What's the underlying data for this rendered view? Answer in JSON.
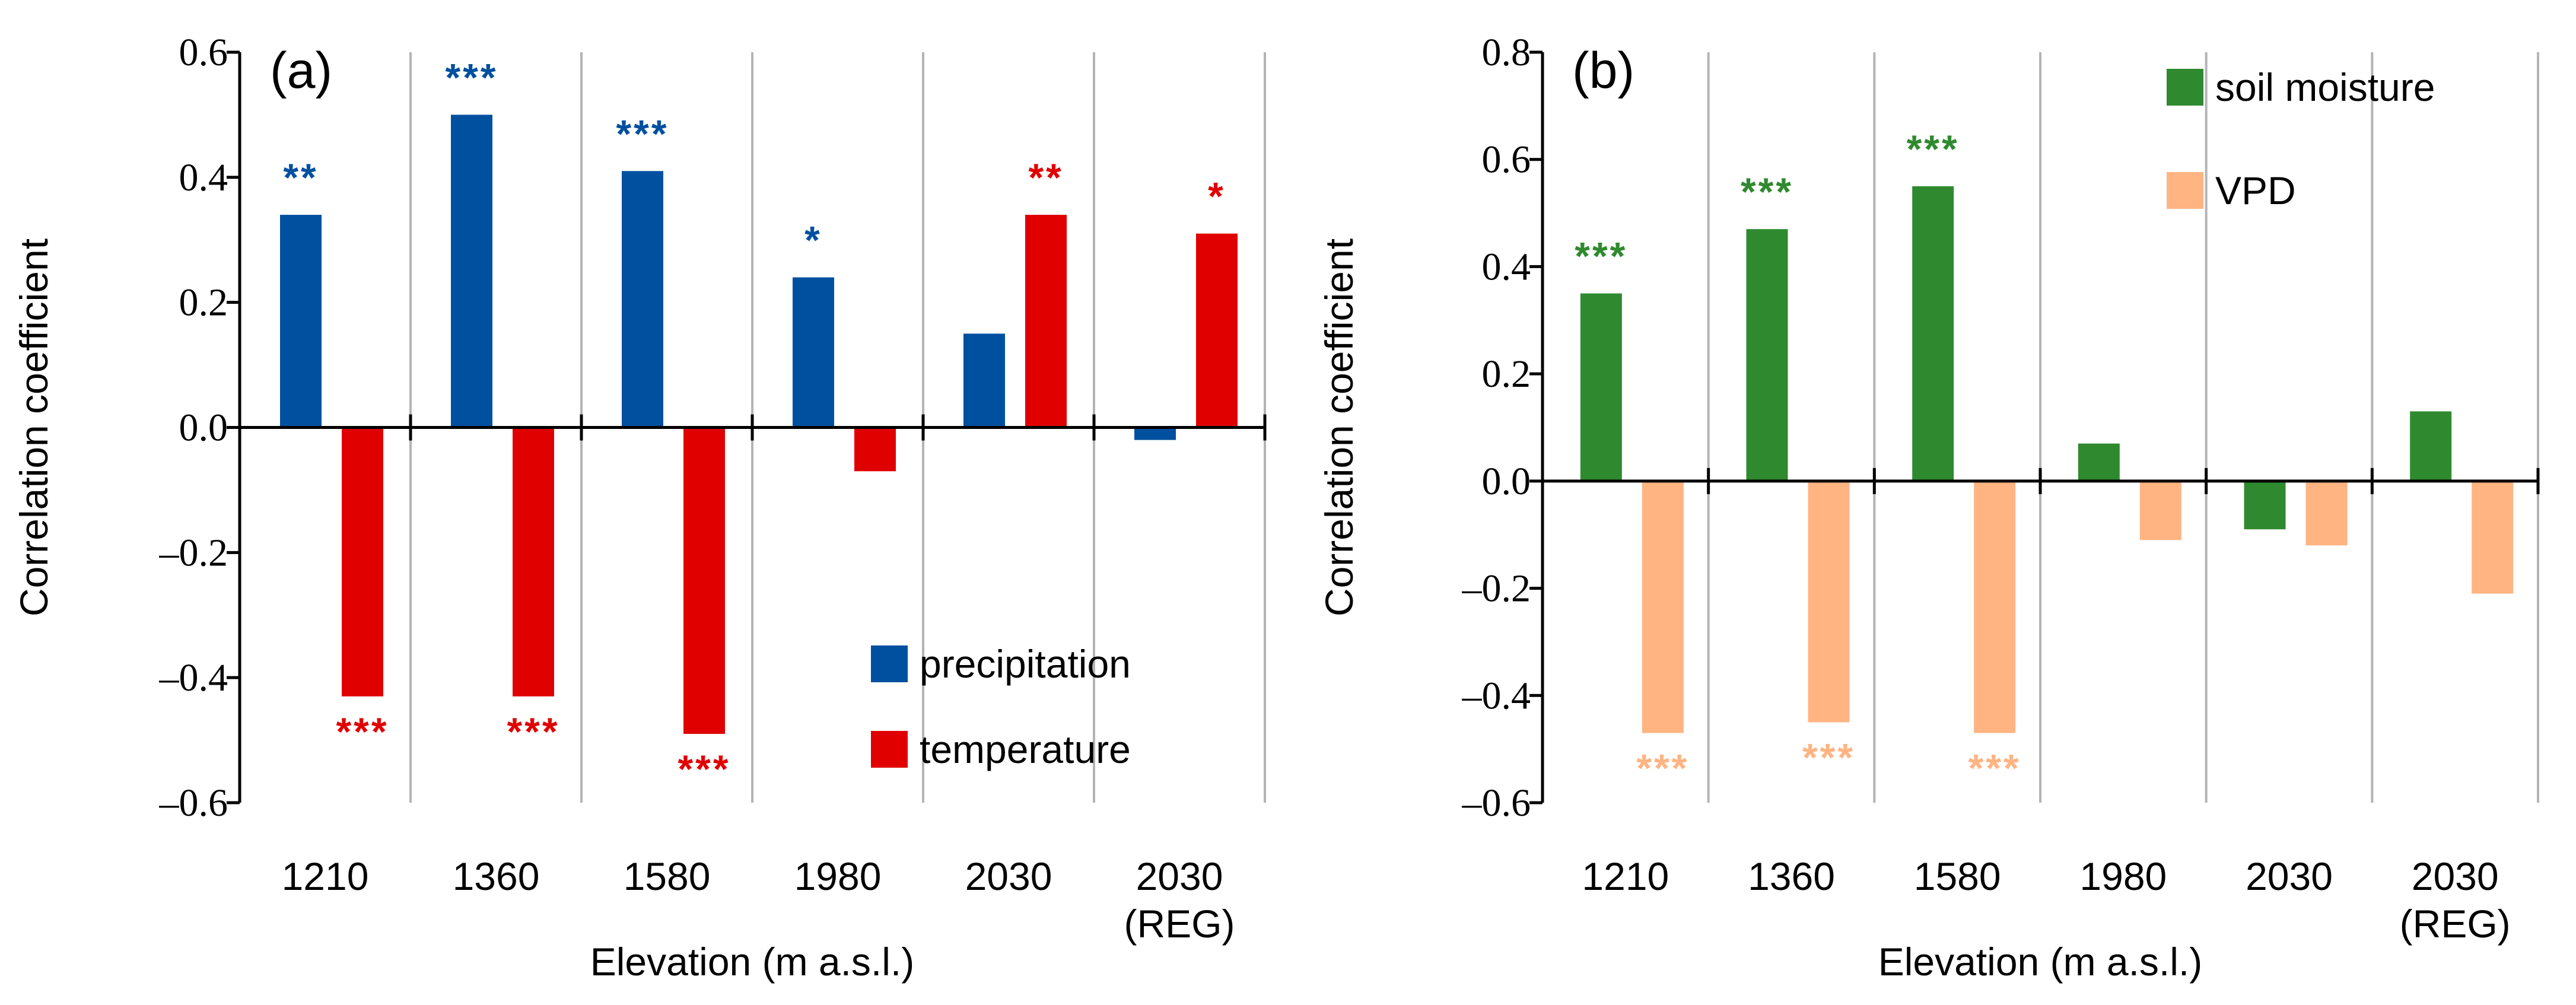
{
  "chart_data": [
    {
      "type": "bar",
      "panel_label": "(a)",
      "xlabel": "Elevation (m a.s.l.)",
      "ylabel": "Correlation coefficient",
      "ylim": [
        -0.6,
        0.6
      ],
      "yticks": [
        -0.6,
        -0.4,
        -0.2,
        0.0,
        0.2,
        0.4,
        0.6
      ],
      "ytick_labels": [
        "–0.6",
        "–0.4",
        "–0.2",
        "0.0",
        "0.2",
        "0.4",
        "0.6"
      ],
      "categories": [
        [
          "1210"
        ],
        [
          "1360"
        ],
        [
          "1580"
        ],
        [
          "1980"
        ],
        [
          "2030"
        ],
        [
          "2030",
          "(REG)"
        ]
      ],
      "legend_position": "bottom-right",
      "series": [
        {
          "name": "precipitation",
          "color": "#0050a0",
          "values": [
            0.34,
            0.5,
            0.41,
            0.24,
            0.15,
            -0.02
          ],
          "significance": [
            "**",
            "***",
            "***",
            "*",
            "",
            ""
          ]
        },
        {
          "name": "temperature",
          "color": "#e00000",
          "values": [
            -0.43,
            -0.43,
            -0.49,
            -0.07,
            0.34,
            0.31
          ],
          "significance": [
            "***",
            "***",
            "***",
            "",
            "**",
            "*"
          ]
        }
      ]
    },
    {
      "type": "bar",
      "panel_label": "(b)",
      "xlabel": "Elevation (m a.s.l.)",
      "ylabel": "Correlation coefficient",
      "ylim": [
        -0.6,
        0.8
      ],
      "yticks": [
        -0.6,
        -0.4,
        -0.2,
        0.0,
        0.2,
        0.4,
        0.6,
        0.8
      ],
      "ytick_labels": [
        "–0.6",
        "–0.4",
        "–0.2",
        "0.0",
        "0.2",
        "0.4",
        "0.6",
        "0.8"
      ],
      "categories": [
        [
          "1210"
        ],
        [
          "1360"
        ],
        [
          "1580"
        ],
        [
          "1980"
        ],
        [
          "2030"
        ],
        [
          "2030",
          "(REG)"
        ]
      ],
      "legend_position": "top-right",
      "series": [
        {
          "name": "soil moisture",
          "color": "#2f8a2f",
          "values": [
            0.35,
            0.47,
            0.55,
            0.07,
            -0.09,
            0.13
          ],
          "significance": [
            "***",
            "***",
            "***",
            "",
            "",
            ""
          ]
        },
        {
          "name": "VPD",
          "color": "#ffb482",
          "values": [
            -0.47,
            -0.45,
            -0.47,
            -0.11,
            -0.12,
            -0.21
          ],
          "significance": [
            "***",
            "***",
            "***",
            "",
            "",
            ""
          ]
        }
      ]
    }
  ]
}
